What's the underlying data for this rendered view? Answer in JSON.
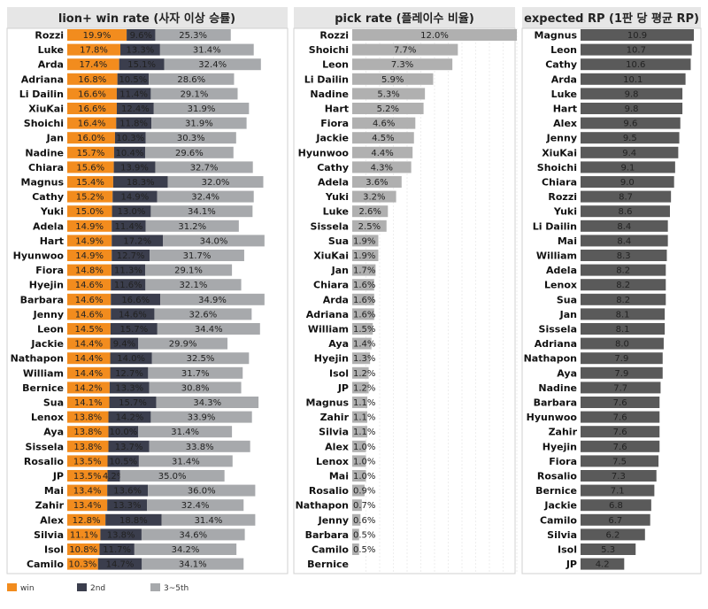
{
  "chart_data": [
    {
      "type": "bar",
      "stacked": true,
      "orientation": "horizontal",
      "title": "lion+ win rate (사자 이상 승률)",
      "categories": [
        "Rozzi",
        "Luke",
        "Arda",
        "Adriana",
        "Li Dailin",
        "XiuKai",
        "Shoichi",
        "Jan",
        "Nadine",
        "Chiara",
        "Magnus",
        "Cathy",
        "Yuki",
        "Adela",
        "Hart",
        "Hyunwoo",
        "Fiora",
        "Hyejin",
        "Barbara",
        "Jenny",
        "Leon",
        "Jackie",
        "Nathapon",
        "William",
        "Bernice",
        "Sua",
        "Lenox",
        "Aya",
        "Sissela",
        "Rosalio",
        "JP",
        "Mai",
        "Zahir",
        "Alex",
        "Silvia",
        "Isol",
        "Camilo"
      ],
      "series": [
        {
          "name": "win",
          "color": "#f28c1e",
          "values": [
            19.9,
            17.8,
            17.4,
            16.8,
            16.6,
            16.6,
            16.4,
            16.0,
            15.7,
            15.6,
            15.4,
            15.2,
            15.0,
            14.9,
            14.9,
            14.9,
            14.8,
            14.6,
            14.6,
            14.6,
            14.5,
            14.4,
            14.4,
            14.4,
            14.2,
            14.1,
            13.8,
            13.8,
            13.8,
            13.5,
            13.5,
            13.4,
            13.4,
            12.8,
            11.1,
            10.8,
            10.3
          ]
        },
        {
          "name": "2nd",
          "color": "#3b3e4d",
          "values": [
            9.6,
            13.3,
            15.1,
            10.5,
            11.4,
            12.4,
            11.8,
            10.3,
            10.4,
            13.9,
            18.3,
            14.9,
            13.0,
            11.4,
            17.2,
            12.7,
            11.3,
            11.6,
            16.6,
            14.6,
            15.7,
            9.4,
            14.0,
            12.7,
            13.3,
            15.7,
            14.2,
            10.0,
            13.7,
            10.5,
            4.2,
            13.6,
            13.3,
            18.8,
            13.8,
            11.7,
            14.7
          ]
        },
        {
          "name": "3~5th",
          "color": "#a7a9ac",
          "values": [
            25.3,
            31.4,
            32.4,
            28.6,
            29.1,
            31.9,
            31.9,
            30.3,
            29.6,
            32.7,
            32.0,
            32.4,
            34.1,
            31.2,
            34.0,
            31.7,
            29.1,
            32.1,
            34.9,
            32.6,
            34.4,
            29.9,
            32.5,
            31.7,
            30.8,
            34.3,
            33.9,
            31.4,
            33.8,
            31.4,
            35.0,
            36.0,
            32.4,
            31.4,
            34.6,
            34.2,
            34.1
          ]
        }
      ],
      "xlim": [
        0,
        70
      ]
    },
    {
      "type": "bar",
      "orientation": "horizontal",
      "title": "pick rate (플레이수 비율)",
      "categories": [
        "Rozzi",
        "Shoichi",
        "Leon",
        "Li Dailin",
        "Nadine",
        "Hart",
        "Fiora",
        "Jackie",
        "Hyunwoo",
        "Cathy",
        "Adela",
        "Yuki",
        "Luke",
        "Sissela",
        "Sua",
        "XiuKai",
        "Jan",
        "Chiara",
        "Arda",
        "Adriana",
        "William",
        "Aya",
        "Hyejin",
        "Isol",
        "JP",
        "Magnus",
        "Zahir",
        "Silvia",
        "Alex",
        "Lenox",
        "Mai",
        "Rosalio",
        "Nathapon",
        "Jenny",
        "Barbara",
        "Camilo",
        "Bernice"
      ],
      "values": [
        12.0,
        7.7,
        7.3,
        5.9,
        5.3,
        5.2,
        4.6,
        4.5,
        4.4,
        4.3,
        3.6,
        3.2,
        2.6,
        2.5,
        1.9,
        1.9,
        1.7,
        1.6,
        1.6,
        1.6,
        1.5,
        1.4,
        1.3,
        1.2,
        1.2,
        1.1,
        1.1,
        1.1,
        1.0,
        1.0,
        1.0,
        0.9,
        0.7,
        0.6,
        0.5,
        0.5,
        null
      ],
      "labels": [
        "12.0%",
        "7.7%",
        "7.3%",
        "5.9%",
        "5.3%",
        "5.2%",
        "4.6%",
        "4.5%",
        "4.4%",
        "4.3%",
        "3.6%",
        "3.2%",
        "2.6%",
        "2.5%",
        "1.9%",
        "1.9%",
        "1.7%",
        "1.6%",
        "1.6%",
        "1.6%",
        "1.5%",
        "1.4%",
        "1.3%",
        "1.2%",
        "1.2%",
        "1.1%",
        "1.1%",
        "1.1%",
        "1.0%",
        "1.0%",
        "1.0%",
        "0.9%",
        "0.7%",
        "0.6%",
        "0.5%",
        "0.5%",
        ""
      ],
      "color": "#b0b0b0",
      "xlim": [
        0,
        12
      ]
    },
    {
      "type": "bar",
      "orientation": "horizontal",
      "title": "expected RP (1판 당 평균 RP)",
      "categories": [
        "Magnus",
        "Leon",
        "Cathy",
        "Arda",
        "Luke",
        "Hart",
        "Alex",
        "Jenny",
        "XiuKai",
        "Shoichi",
        "Chiara",
        "Rozzi",
        "Yuki",
        "Li Dailin",
        "Mai",
        "William",
        "Adela",
        "Lenox",
        "Sua",
        "Jan",
        "Sissela",
        "Adriana",
        "Nathapon",
        "Aya",
        "Nadine",
        "Barbara",
        "Hyunwoo",
        "Zahir",
        "Hyejin",
        "Fiora",
        "Rosalio",
        "Bernice",
        "Jackie",
        "Camilo",
        "Silvia",
        "Isol",
        "JP"
      ],
      "values": [
        10.9,
        10.7,
        10.6,
        10.1,
        9.8,
        9.8,
        9.6,
        9.5,
        9.4,
        9.1,
        9.0,
        8.7,
        8.6,
        8.4,
        8.4,
        8.3,
        8.2,
        8.2,
        8.2,
        8.1,
        8.1,
        8.0,
        7.9,
        7.9,
        7.7,
        7.6,
        7.6,
        7.6,
        7.6,
        7.5,
        7.3,
        7.1,
        6.8,
        6.7,
        6.2,
        5.3,
        4.2
      ],
      "color": "#5a5a5a",
      "xlim": [
        0,
        10.9
      ]
    }
  ],
  "legend": [
    {
      "name": "win",
      "color": "#f28c1e"
    },
    {
      "name": "2nd",
      "color": "#3b3e4d"
    },
    {
      "name": "3~5th",
      "color": "#a7a9ac"
    }
  ]
}
